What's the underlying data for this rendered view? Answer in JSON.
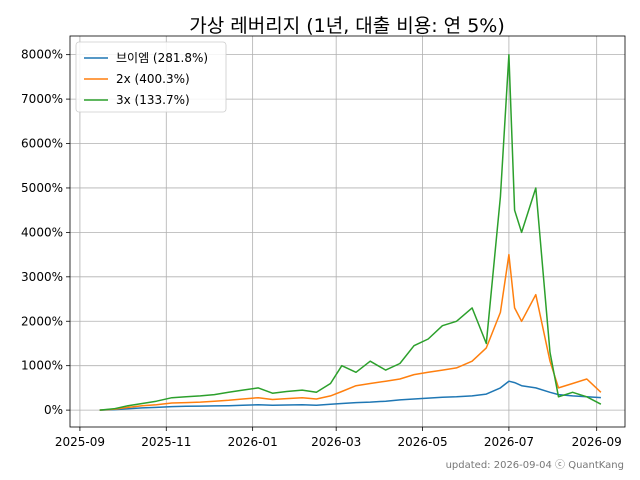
{
  "chart_data": {
    "type": "line",
    "title": "가상 레버리지 (1년, 대출 비용: 연 5%)",
    "footer": "updated: 2026-09-04 ⓒ QuantKang",
    "xlabel": "",
    "ylabel": "",
    "x_ticks": [
      "2025-09",
      "2025-11",
      "2026-01",
      "2026-03",
      "2026-05",
      "2026-07",
      "2026-09"
    ],
    "xlim": [
      "2025-08-25",
      "2026-09-21"
    ],
    "y_ticks": [
      "0%",
      "1000%",
      "2000%",
      "3000%",
      "4000%",
      "5000%",
      "6000%",
      "7000%",
      "8000%"
    ],
    "ylim": [
      -380,
      8420
    ],
    "y_unit": "%",
    "grid": true,
    "legend_position": "top-left",
    "series": [
      {
        "name": "브이엠 (281.8%)",
        "color": "#1f77b4",
        "points": [
          [
            "2025-09-15",
            0
          ],
          [
            "2025-09-25",
            10
          ],
          [
            "2025-10-05",
            30
          ],
          [
            "2025-10-15",
            50
          ],
          [
            "2025-10-25",
            60
          ],
          [
            "2025-11-05",
            80
          ],
          [
            "2025-11-15",
            85
          ],
          [
            "2025-11-25",
            90
          ],
          [
            "2025-12-05",
            95
          ],
          [
            "2025-12-15",
            100
          ],
          [
            "2025-12-25",
            110
          ],
          [
            "2026-01-05",
            120
          ],
          [
            "2026-01-15",
            110
          ],
          [
            "2026-01-25",
            115
          ],
          [
            "2026-02-05",
            120
          ],
          [
            "2026-02-15",
            110
          ],
          [
            "2026-02-25",
            130
          ],
          [
            "2026-03-05",
            150
          ],
          [
            "2026-03-15",
            170
          ],
          [
            "2026-03-25",
            180
          ],
          [
            "2026-04-05",
            200
          ],
          [
            "2026-04-15",
            230
          ],
          [
            "2026-04-25",
            250
          ],
          [
            "2026-05-05",
            270
          ],
          [
            "2026-05-15",
            290
          ],
          [
            "2026-05-25",
            300
          ],
          [
            "2026-06-05",
            320
          ],
          [
            "2026-06-15",
            360
          ],
          [
            "2026-06-25",
            500
          ],
          [
            "2026-07-01",
            650
          ],
          [
            "2026-07-05",
            620
          ],
          [
            "2026-07-10",
            550
          ],
          [
            "2026-07-20",
            500
          ],
          [
            "2026-07-30",
            400
          ],
          [
            "2026-08-05",
            350
          ],
          [
            "2026-08-15",
            320
          ],
          [
            "2026-08-25",
            300
          ],
          [
            "2026-09-04",
            282
          ]
        ]
      },
      {
        "name": "2x (400.3%)",
        "color": "#ff7f0e",
        "points": [
          [
            "2025-09-15",
            0
          ],
          [
            "2025-09-25",
            20
          ],
          [
            "2025-10-05",
            60
          ],
          [
            "2025-10-15",
            100
          ],
          [
            "2025-10-25",
            120
          ],
          [
            "2025-11-05",
            160
          ],
          [
            "2025-11-15",
            170
          ],
          [
            "2025-11-25",
            180
          ],
          [
            "2025-12-05",
            200
          ],
          [
            "2025-12-15",
            220
          ],
          [
            "2025-12-25",
            250
          ],
          [
            "2026-01-05",
            280
          ],
          [
            "2026-01-15",
            240
          ],
          [
            "2026-01-25",
            260
          ],
          [
            "2026-02-05",
            280
          ],
          [
            "2026-02-15",
            250
          ],
          [
            "2026-02-25",
            320
          ],
          [
            "2026-03-05",
            420
          ],
          [
            "2026-03-15",
            550
          ],
          [
            "2026-03-25",
            600
          ],
          [
            "2026-04-05",
            650
          ],
          [
            "2026-04-15",
            700
          ],
          [
            "2026-04-25",
            800
          ],
          [
            "2026-05-05",
            850
          ],
          [
            "2026-05-15",
            900
          ],
          [
            "2026-05-25",
            950
          ],
          [
            "2026-06-05",
            1100
          ],
          [
            "2026-06-15",
            1400
          ],
          [
            "2026-06-25",
            2200
          ],
          [
            "2026-07-01",
            3500
          ],
          [
            "2026-07-05",
            2300
          ],
          [
            "2026-07-10",
            2000
          ],
          [
            "2026-07-20",
            2600
          ],
          [
            "2026-07-30",
            1100
          ],
          [
            "2026-08-05",
            500
          ],
          [
            "2026-08-15",
            600
          ],
          [
            "2026-08-25",
            700
          ],
          [
            "2026-09-04",
            400
          ]
        ]
      },
      {
        "name": "3x (133.7%)",
        "color": "#2ca02c",
        "points": [
          [
            "2025-09-15",
            0
          ],
          [
            "2025-09-25",
            30
          ],
          [
            "2025-10-05",
            100
          ],
          [
            "2025-10-15",
            150
          ],
          [
            "2025-10-25",
            200
          ],
          [
            "2025-11-05",
            280
          ],
          [
            "2025-11-15",
            300
          ],
          [
            "2025-11-25",
            320
          ],
          [
            "2025-12-05",
            350
          ],
          [
            "2025-12-15",
            400
          ],
          [
            "2025-12-25",
            450
          ],
          [
            "2026-01-05",
            500
          ],
          [
            "2026-01-15",
            380
          ],
          [
            "2026-01-25",
            420
          ],
          [
            "2026-02-05",
            450
          ],
          [
            "2026-02-15",
            400
          ],
          [
            "2026-02-25",
            600
          ],
          [
            "2026-03-05",
            1000
          ],
          [
            "2026-03-15",
            850
          ],
          [
            "2026-03-25",
            1100
          ],
          [
            "2026-04-05",
            900
          ],
          [
            "2026-04-15",
            1050
          ],
          [
            "2026-04-25",
            1450
          ],
          [
            "2026-05-05",
            1600
          ],
          [
            "2026-05-15",
            1900
          ],
          [
            "2026-05-25",
            2000
          ],
          [
            "2026-06-05",
            2300
          ],
          [
            "2026-06-15",
            1500
          ],
          [
            "2026-06-25",
            4800
          ],
          [
            "2026-07-01",
            8000
          ],
          [
            "2026-07-05",
            4500
          ],
          [
            "2026-07-10",
            4000
          ],
          [
            "2026-07-20",
            5000
          ],
          [
            "2026-07-30",
            1300
          ],
          [
            "2026-08-05",
            300
          ],
          [
            "2026-08-15",
            400
          ],
          [
            "2026-08-25",
            300
          ],
          [
            "2026-09-04",
            134
          ]
        ]
      }
    ]
  }
}
